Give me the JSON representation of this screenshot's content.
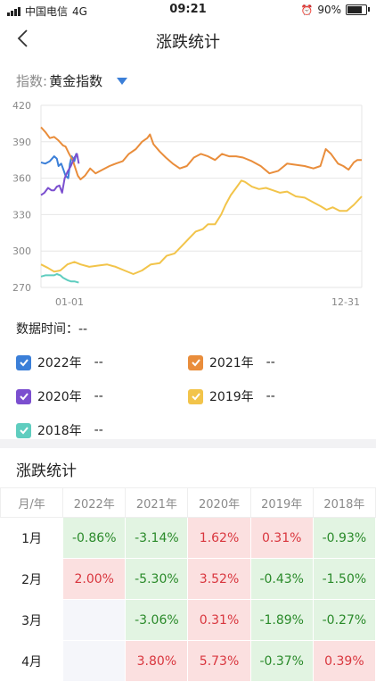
{
  "status": {
    "carrier": "中国电信",
    "network": "4G",
    "time": "09:21",
    "battery": "90%",
    "battery_level": 0.9
  },
  "nav": {
    "title": "涨跌统计"
  },
  "index": {
    "label": "指数:",
    "value": "黄金指数"
  },
  "chart_data": {
    "type": "line",
    "y_ticks": [
      "420",
      "390",
      "360",
      "330",
      "300",
      "270"
    ],
    "ylim": [
      270,
      420
    ],
    "x_tick_labels": [
      "01-01",
      "12-31"
    ],
    "xlim": [
      0,
      365
    ],
    "grid": true,
    "series": [
      {
        "name": "2022年",
        "color": "#3b7fd8",
        "points": [
          [
            0,
            373
          ],
          [
            5,
            372
          ],
          [
            10,
            374
          ],
          [
            15,
            378
          ],
          [
            18,
            376
          ],
          [
            20,
            370
          ],
          [
            23,
            372
          ],
          [
            25,
            368
          ],
          [
            28,
            362
          ],
          [
            31,
            360
          ],
          [
            33,
            372
          ],
          [
            35,
            378
          ],
          [
            38,
            374
          ],
          [
            40,
            380
          ],
          [
            42,
            377
          ]
        ]
      },
      {
        "name": "2021年",
        "color": "#e98d3b",
        "points": [
          [
            0,
            402
          ],
          [
            5,
            398
          ],
          [
            10,
            393
          ],
          [
            15,
            394
          ],
          [
            20,
            391
          ],
          [
            25,
            387
          ],
          [
            28,
            386
          ],
          [
            32,
            380
          ],
          [
            36,
            375
          ],
          [
            42,
            362
          ],
          [
            45,
            359
          ],
          [
            50,
            362
          ],
          [
            56,
            368
          ],
          [
            62,
            364
          ],
          [
            70,
            367
          ],
          [
            78,
            370
          ],
          [
            85,
            372
          ],
          [
            93,
            374
          ],
          [
            100,
            380
          ],
          [
            108,
            384
          ],
          [
            115,
            390
          ],
          [
            121,
            393
          ],
          [
            124,
            396
          ],
          [
            128,
            388
          ],
          [
            135,
            382
          ],
          [
            142,
            377
          ],
          [
            150,
            372
          ],
          [
            158,
            368
          ],
          [
            166,
            370
          ],
          [
            174,
            377
          ],
          [
            182,
            380
          ],
          [
            190,
            378
          ],
          [
            198,
            375
          ],
          [
            206,
            380
          ],
          [
            214,
            378
          ],
          [
            222,
            378
          ],
          [
            230,
            377
          ],
          [
            240,
            374
          ],
          [
            250,
            370
          ],
          [
            260,
            364
          ],
          [
            270,
            366
          ],
          [
            280,
            372
          ],
          [
            290,
            371
          ],
          [
            300,
            370
          ],
          [
            310,
            368
          ],
          [
            318,
            370
          ],
          [
            324,
            384
          ],
          [
            330,
            380
          ],
          [
            338,
            372
          ],
          [
            344,
            370
          ],
          [
            350,
            367
          ],
          [
            356,
            373
          ],
          [
            360,
            375
          ],
          [
            365,
            375
          ]
        ]
      },
      {
        "name": "2020年",
        "color": "#7b4fcf",
        "points": [
          [
            0,
            346
          ],
          [
            4,
            348
          ],
          [
            8,
            352
          ],
          [
            12,
            350
          ],
          [
            15,
            350
          ],
          [
            18,
            353
          ],
          [
            21,
            354
          ],
          [
            24,
            348
          ],
          [
            27,
            360
          ],
          [
            30,
            365
          ],
          [
            34,
            370
          ],
          [
            38,
            377
          ],
          [
            41,
            380
          ],
          [
            43,
            372
          ]
        ]
      },
      {
        "name": "2019年",
        "color": "#f2c44a",
        "points": [
          [
            0,
            289
          ],
          [
            8,
            286
          ],
          [
            15,
            283
          ],
          [
            22,
            284
          ],
          [
            30,
            289
          ],
          [
            38,
            291
          ],
          [
            45,
            289
          ],
          [
            55,
            287
          ],
          [
            65,
            288
          ],
          [
            75,
            289
          ],
          [
            85,
            287
          ],
          [
            95,
            284
          ],
          [
            105,
            281
          ],
          [
            115,
            284
          ],
          [
            125,
            289
          ],
          [
            135,
            290
          ],
          [
            143,
            296
          ],
          [
            152,
            298
          ],
          [
            160,
            304
          ],
          [
            168,
            310
          ],
          [
            176,
            316
          ],
          [
            184,
            318
          ],
          [
            190,
            322
          ],
          [
            198,
            322
          ],
          [
            205,
            330
          ],
          [
            210,
            338
          ],
          [
            216,
            346
          ],
          [
            222,
            352
          ],
          [
            228,
            358
          ],
          [
            232,
            357
          ],
          [
            240,
            353
          ],
          [
            248,
            351
          ],
          [
            256,
            352
          ],
          [
            264,
            350
          ],
          [
            272,
            348
          ],
          [
            280,
            349
          ],
          [
            290,
            345
          ],
          [
            300,
            344
          ],
          [
            310,
            340
          ],
          [
            318,
            337
          ],
          [
            325,
            334
          ],
          [
            332,
            336
          ],
          [
            340,
            333
          ],
          [
            348,
            333
          ],
          [
            356,
            338
          ],
          [
            365,
            345
          ]
        ]
      },
      {
        "name": "2018年",
        "color": "#5fcdbf",
        "points": [
          [
            0,
            279
          ],
          [
            5,
            280
          ],
          [
            10,
            280
          ],
          [
            15,
            280
          ],
          [
            18,
            281
          ],
          [
            22,
            280
          ],
          [
            25,
            278
          ],
          [
            30,
            276
          ],
          [
            34,
            275
          ],
          [
            38,
            275
          ],
          [
            43,
            274
          ]
        ]
      }
    ]
  },
  "data_time": {
    "label": "数据时间：",
    "value": "--"
  },
  "legend": [
    {
      "label": "2022年",
      "value": "--",
      "color": "#3b7fd8"
    },
    {
      "label": "2021年",
      "value": "--",
      "color": "#e98d3b"
    },
    {
      "label": "2020年",
      "value": "--",
      "color": "#7b4fcf"
    },
    {
      "label": "2019年",
      "value": "--",
      "color": "#f2c44a"
    },
    {
      "label": "2018年",
      "value": "--",
      "color": "#5fcdbf"
    }
  ],
  "stats": {
    "title": "涨跌统计",
    "headers": [
      "月/年",
      "2022年",
      "2021年",
      "2020年",
      "2019年",
      "2018年"
    ],
    "rows": [
      {
        "month": "1月",
        "cells": [
          "-0.86%",
          "-3.14%",
          "1.62%",
          "0.31%",
          "-0.93%"
        ]
      },
      {
        "month": "2月",
        "cells": [
          "2.00%",
          "-5.30%",
          "3.52%",
          "-0.43%",
          "-1.50%"
        ]
      },
      {
        "month": "3月",
        "cells": [
          "",
          "-3.06%",
          "0.31%",
          "-1.89%",
          "-0.27%"
        ]
      },
      {
        "month": "4月",
        "cells": [
          "",
          "3.80%",
          "5.73%",
          "-0.37%",
          "0.39%"
        ]
      }
    ]
  }
}
